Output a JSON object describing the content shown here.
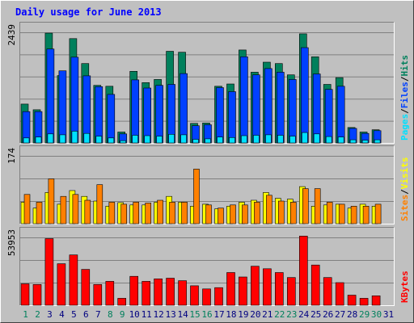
{
  "chart_data": {
    "type": "bar",
    "title": "Daily usage for June 2013",
    "colors": {
      "hits": "#00805c",
      "files": "#0040ff",
      "pages": "#00e0ff",
      "visits": "#ffff00",
      "sites": "#ff8000",
      "kbytes": "#ff0000",
      "title": "#0000ff",
      "weekday": "#000080",
      "weekend": "#00805c",
      "panel": "#c0c0c0"
    },
    "categories": [
      "1",
      "2",
      "3",
      "4",
      "5",
      "6",
      "7",
      "8",
      "9",
      "10",
      "11",
      "12",
      "13",
      "14",
      "15",
      "16",
      "17",
      "18",
      "19",
      "20",
      "21",
      "22",
      "23",
      "24",
      "25",
      "26",
      "27",
      "28",
      "29",
      "30",
      "31"
    ],
    "weekend_days": [
      "1",
      "2",
      "8",
      "9",
      "15",
      "16",
      "22",
      "23",
      "29",
      "30"
    ],
    "panels": [
      {
        "id": "pages_files_hits",
        "ymax_label": "2439",
        "ymax": 2439,
        "legend": [
          {
            "key": "pages",
            "label": "Pages"
          },
          {
            "key": "files",
            "label": "Files"
          },
          {
            "key": "hits",
            "label": "Hits"
          }
        ],
        "separator": "/",
        "series": [
          {
            "key": "hits",
            "name": "Hits",
            "values": [
              857,
              731,
              2422,
              1485,
              2300,
              1750,
              1270,
              1250,
              240,
              1580,
              1330,
              1400,
              2020,
              2000,
              430,
              440,
              1250,
              1300,
              2050,
              1560,
              1780,
              1750,
              1500,
              2405,
              1900,
              1290,
              1440,
              340,
              240,
              290,
              0
            ]
          },
          {
            "key": "files",
            "name": "Files",
            "values": [
              690,
              690,
              2070,
              1590,
              1890,
              1480,
              1240,
              1070,
              200,
              1390,
              1210,
              1270,
              1290,
              1530,
              380,
              400,
              1220,
              1130,
              1900,
              1500,
              1640,
              1560,
              1400,
              2100,
              1520,
              1180,
              1250,
              320,
              210,
              270,
              0
            ]
          },
          {
            "key": "pages",
            "name": "Pages",
            "values": [
              110,
              130,
              200,
              180,
              260,
              210,
              150,
              110,
              50,
              170,
              160,
              150,
              190,
              180,
              80,
              90,
              130,
              120,
              160,
              170,
              180,
              170,
              150,
              230,
              200,
              140,
              130,
              70,
              60,
              70,
              0
            ]
          }
        ]
      },
      {
        "id": "visits_sites",
        "ymax_label": "174",
        "ymax": 174,
        "legend": [
          {
            "key": "sites",
            "label": "Sites"
          },
          {
            "key": "visits",
            "label": "Visits"
          }
        ],
        "separator": "/",
        "series": [
          {
            "key": "visits",
            "name": "Visits",
            "values": [
              55,
              40,
              80,
              50,
              85,
              70,
              58,
              45,
              54,
              48,
              48,
              55,
              70,
              55,
              45,
              50,
              38,
              45,
              55,
              60,
              80,
              65,
              63,
              95,
              45,
              48,
              50,
              40,
              50,
              45,
              0
            ]
          },
          {
            "key": "sites",
            "name": "Sites",
            "values": [
              75,
              55,
              115,
              70,
              75,
              60,
              100,
              55,
              50,
              55,
              53,
              60,
              55,
              55,
              140,
              48,
              40,
              48,
              48,
              55,
              73,
              58,
              55,
              90,
              90,
              55,
              50,
              45,
              45,
              50,
              0
            ]
          }
        ]
      },
      {
        "id": "kbytes",
        "ymax_label": "53953",
        "ymax": 53953,
        "legend": [
          {
            "key": "kbytes",
            "label": "KBytes"
          }
        ],
        "separator": "",
        "series": [
          {
            "key": "kbytes",
            "name": "KBytes",
            "values": [
              17000,
              16500,
              53000,
              33000,
              40000,
              28500,
              16500,
              19000,
              5500,
              23000,
              19000,
              21000,
              21500,
              19500,
              15500,
              13000,
              14000,
              26000,
              22500,
              31000,
              29000,
              26000,
              22000,
              55000,
              32000,
              22000,
              18000,
              8000,
              5500,
              7500,
              0
            ]
          }
        ]
      }
    ]
  }
}
